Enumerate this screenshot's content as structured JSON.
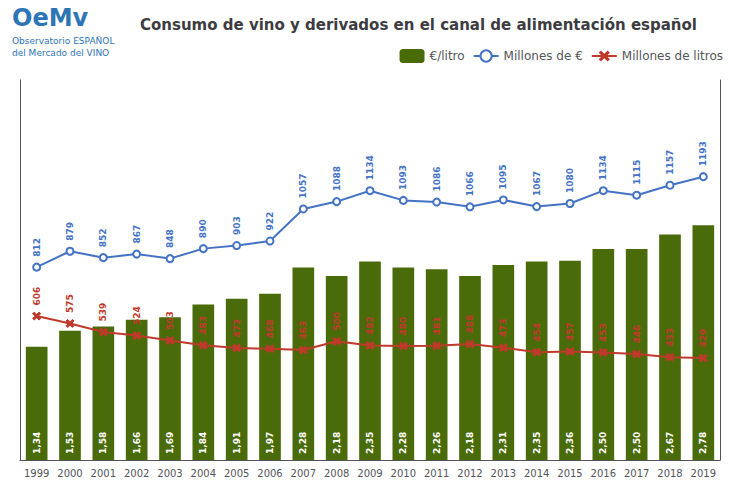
{
  "chart_data": {
    "type": "bar",
    "title": "Consumo de vino y derivados en el canal de alimentación español",
    "categories": [
      "1999",
      "2000",
      "2001",
      "2002",
      "2003",
      "2004",
      "2005",
      "2006",
      "2007",
      "2008",
      "2009",
      "2010",
      "2011",
      "2012",
      "2013",
      "2014",
      "2015",
      "2016",
      "2017",
      "2018",
      "2019"
    ],
    "series": [
      {
        "name": "€/litro",
        "type": "bar",
        "color": "#4a6b0a",
        "values": [
          1.34,
          1.53,
          1.58,
          1.66,
          1.69,
          1.84,
          1.91,
          1.97,
          2.28,
          2.18,
          2.35,
          2.28,
          2.26,
          2.18,
          2.31,
          2.35,
          2.36,
          2.5,
          2.5,
          2.67,
          2.78
        ],
        "value_labels": [
          "1,34",
          "1,53",
          "1,58",
          "1,66",
          "1,69",
          "1,84",
          "1,91",
          "1,97",
          "2,28",
          "2,18",
          "2,35",
          "2,28",
          "2,26",
          "2,18",
          "2,31",
          "2,35",
          "2,36",
          "2,50",
          "2,50",
          "2,67",
          "2,78"
        ]
      },
      {
        "name": "Millones de €",
        "type": "line",
        "axis": "y2",
        "color": "#4472c4",
        "marker": "circle",
        "values": [
          812,
          879,
          852,
          867,
          848,
          890,
          903,
          922,
          1057,
          1088,
          1134,
          1093,
          1086,
          1066,
          1095,
          1067,
          1080,
          1134,
          1115,
          1157,
          1193
        ]
      },
      {
        "name": "Millones de litros",
        "type": "line",
        "axis": "y2",
        "color": "#c0392b",
        "marker": "x",
        "values": [
          606,
          575,
          539,
          524,
          503,
          483,
          472,
          468,
          463,
          500,
          482,
          480,
          481,
          488,
          473,
          454,
          457,
          453,
          446,
          433,
          429
        ]
      }
    ],
    "ylim": [
      0,
      4.5
    ],
    "yticks": [],
    "y2lim": [
      0,
      1600
    ],
    "y2ticks": [],
    "tick_labels": "x",
    "data_labels": true,
    "grid": false,
    "legend": "upper right",
    "annotations": [
      {
        "text": "OeMv",
        "color": "#2e75b6"
      },
      {
        "text": "Observatorio ESPAÑOL",
        "color": "#2e75b6"
      },
      {
        "text": "del Mercado del VINO",
        "color": "#2e75b6"
      }
    ]
  }
}
